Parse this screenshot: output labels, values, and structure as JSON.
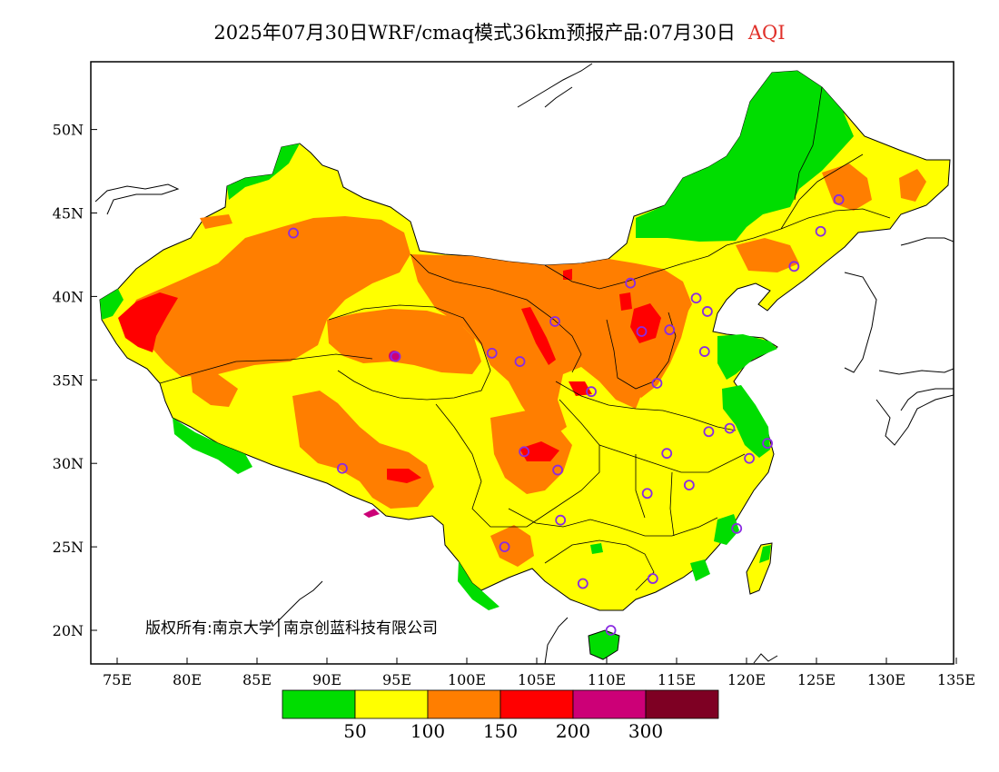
{
  "title": {
    "main": "2025年07月30日WRF/cmaq模式36km预报产品:07月30日",
    "variable": "AQI"
  },
  "axes": {
    "lat_labels": [
      "50N",
      "45N",
      "40N",
      "35N",
      "30N",
      "25N",
      "20N"
    ],
    "lon_labels": [
      "75E",
      "80E",
      "85E",
      "90E",
      "95E",
      "100E",
      "105E",
      "110E",
      "115E",
      "120E",
      "125E",
      "130E",
      "135E"
    ],
    "lat_range": [
      18,
      54
    ],
    "lon_range": [
      73,
      135
    ]
  },
  "copyright": "版权所有:南京大学│南京创蓝科技有限公司",
  "legend": {
    "colors": [
      "#00dd00",
      "#ffff00",
      "#ff7e00",
      "#ff0000",
      "#cc0077",
      "#7e0023"
    ],
    "labels": [
      "50",
      "100",
      "150",
      "200",
      "300"
    ]
  },
  "colors": {
    "good": "#00dd00",
    "moderate": "#ffff00",
    "sensitive": "#ff7e00",
    "unhealthy": "#ff0000",
    "very_unhealthy": "#cc0077",
    "hazardous": "#7e0023",
    "station_marker": "#8a2be2"
  },
  "stations": [
    {
      "lon": 87.6,
      "lat": 43.8
    },
    {
      "lon": 91.1,
      "lat": 29.7
    },
    {
      "lon": 94.9,
      "lat": 36.4
    },
    {
      "lon": 101.8,
      "lat": 36.6
    },
    {
      "lon": 103.8,
      "lat": 36.1
    },
    {
      "lon": 106.3,
      "lat": 38.5
    },
    {
      "lon": 111.7,
      "lat": 40.8
    },
    {
      "lon": 112.5,
      "lat": 37.9
    },
    {
      "lon": 114.5,
      "lat": 38.0
    },
    {
      "lon": 116.4,
      "lat": 39.9
    },
    {
      "lon": 117.2,
      "lat": 39.1
    },
    {
      "lon": 117.0,
      "lat": 36.7
    },
    {
      "lon": 113.6,
      "lat": 34.8
    },
    {
      "lon": 108.9,
      "lat": 34.3
    },
    {
      "lon": 104.1,
      "lat": 30.7
    },
    {
      "lon": 106.5,
      "lat": 29.6
    },
    {
      "lon": 106.7,
      "lat": 26.6
    },
    {
      "lon": 102.7,
      "lat": 25.0
    },
    {
      "lon": 108.3,
      "lat": 22.8
    },
    {
      "lon": 113.3,
      "lat": 23.1
    },
    {
      "lon": 110.3,
      "lat": 20.0
    },
    {
      "lon": 112.9,
      "lat": 28.2
    },
    {
      "lon": 115.9,
      "lat": 28.7
    },
    {
      "lon": 114.3,
      "lat": 30.6
    },
    {
      "lon": 117.3,
      "lat": 31.9
    },
    {
      "lon": 118.8,
      "lat": 32.1
    },
    {
      "lon": 120.2,
      "lat": 30.3
    },
    {
      "lon": 121.5,
      "lat": 31.2
    },
    {
      "lon": 119.3,
      "lat": 26.1
    },
    {
      "lon": 123.4,
      "lat": 41.8
    },
    {
      "lon": 125.3,
      "lat": 43.9
    },
    {
      "lon": 126.6,
      "lat": 45.8
    }
  ]
}
